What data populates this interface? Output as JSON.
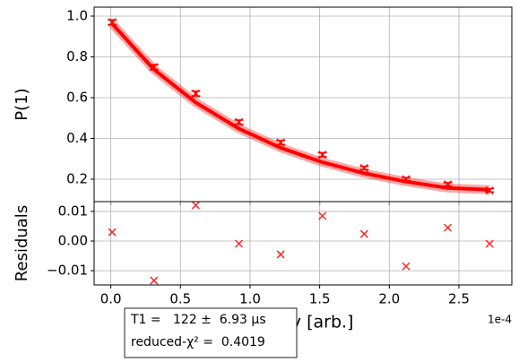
{
  "chart_data": [
    {
      "type": "errorbar",
      "ylabel": "P(1)",
      "color": "#ff0000",
      "grid": true,
      "x": [
        0.01,
        0.31,
        0.61,
        0.92,
        1.22,
        1.52,
        1.82,
        2.12,
        2.42,
        2.72
      ],
      "values": [
        0.97,
        0.75,
        0.62,
        0.48,
        0.38,
        0.32,
        0.255,
        0.2,
        0.175,
        0.145
      ],
      "errors": [
        0.012,
        0.012,
        0.012,
        0.01,
        0.01,
        0.01,
        0.008,
        0.008,
        0.008,
        0.008
      ],
      "fit_values": [
        0.962,
        0.738,
        0.576,
        0.448,
        0.354,
        0.283,
        0.229,
        0.188,
        0.157,
        0.148
      ],
      "xlim": [
        -0.12,
        2.88
      ],
      "xticks": [
        0,
        0.5,
        1,
        1.5,
        2,
        2.5
      ],
      "ylim": [
        0.09,
        1.044
      ],
      "yticks": [
        0.2,
        0.4,
        0.6,
        0.8,
        {
          "value": 1.0,
          "label": "1.0"
        }
      ]
    },
    {
      "type": "scatter",
      "ylabel": "Residuals",
      "xlabel": "Delay [arb.]",
      "x_offset_label": "1e-4",
      "color": "#ff0000",
      "grid": true,
      "x": [
        0.01,
        0.31,
        0.61,
        0.92,
        1.22,
        1.52,
        1.82,
        2.12,
        2.42,
        2.72
      ],
      "values": [
        0.003,
        -0.0133,
        0.0121,
        -0.0009,
        -0.0045,
        0.0085,
        0.0024,
        -0.0085,
        0.0045,
        -0.0009
      ],
      "xlim": [
        -0.12,
        2.88
      ],
      "xticks": [
        {
          "value": 0,
          "label": "0.0"
        },
        {
          "value": 0.5,
          "label": "0.5"
        },
        {
          "value": 1,
          "label": "1.0"
        },
        {
          "value": 1.5,
          "label": "1.5"
        },
        {
          "value": 2,
          "label": "2.0"
        },
        {
          "value": 2.5,
          "label": "2.5"
        }
      ],
      "ylim": [
        -0.0148,
        0.0133
      ],
      "yticks": [
        {
          "value": -0.01,
          "label": "−0.01"
        },
        {
          "value": 0,
          "label": "0.00"
        },
        0.01
      ],
      "annotations": [
        "T1 =   122 ±  6.93 μs",
        "reduced-χ² =  0.4019"
      ]
    }
  ]
}
